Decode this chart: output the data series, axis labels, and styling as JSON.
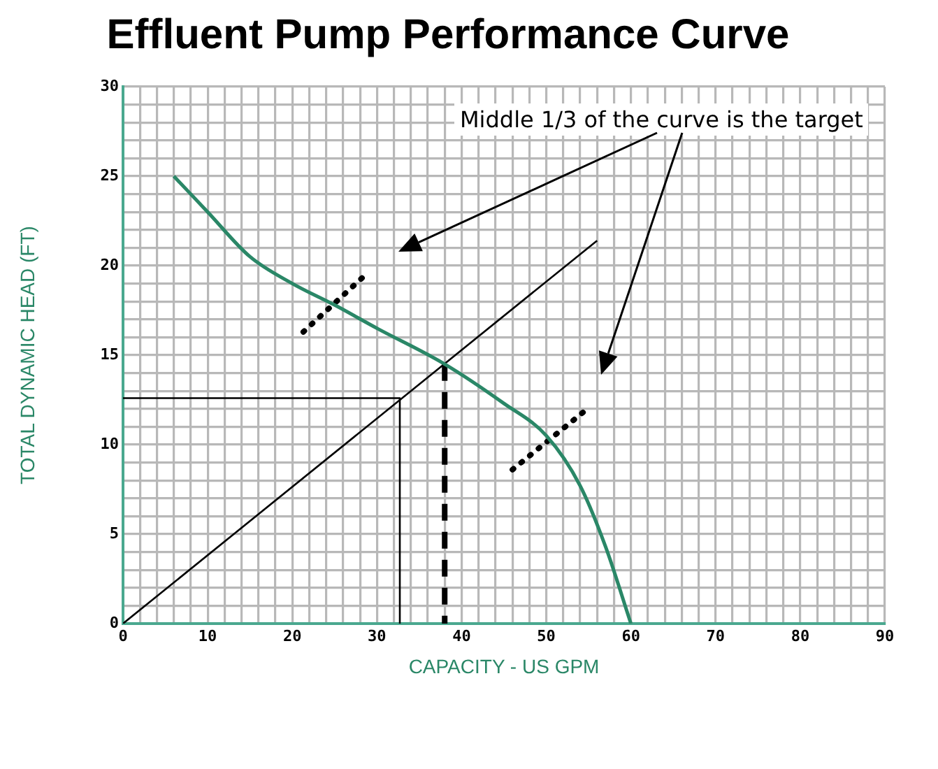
{
  "chart_data": {
    "type": "line",
    "title": "Effluent Pump Performance Curve",
    "xlabel": "CAPACITY - US GPM",
    "ylabel": "TOTAL DYNAMIC HEAD (FT)",
    "xlim": [
      0,
      90
    ],
    "ylim": [
      0,
      30
    ],
    "xticks": [
      0,
      {
        "value": 2,
        "label": null
      },
      {
        "value": 4,
        "label": null
      },
      {
        "value": 6,
        "label": null
      },
      {
        "value": 8,
        "label": null
      },
      10,
      {
        "value": 12,
        "label": null
      },
      {
        "value": 14,
        "label": null
      },
      {
        "value": 16,
        "label": null
      },
      {
        "value": 18,
        "label": null
      },
      20,
      {
        "value": 22,
        "label": null
      },
      {
        "value": 24,
        "label": null
      },
      {
        "value": 26,
        "label": null
      },
      {
        "value": 28,
        "label": null
      },
      30,
      {
        "value": 32,
        "label": null
      },
      {
        "value": 34,
        "label": null
      },
      {
        "value": 36,
        "label": null
      },
      {
        "value": 38,
        "label": null
      },
      40,
      {
        "value": 42,
        "label": null
      },
      {
        "value": 44,
        "label": null
      },
      {
        "value": 46,
        "label": null
      },
      {
        "value": 48,
        "label": null
      },
      50,
      {
        "value": 52,
        "label": null
      },
      {
        "value": 54,
        "label": null
      },
      {
        "value": 56,
        "label": null
      },
      {
        "value": 58,
        "label": null
      },
      60,
      {
        "value": 62,
        "label": null
      },
      {
        "value": 64,
        "label": null
      },
      {
        "value": 66,
        "label": null
      },
      {
        "value": 68,
        "label": null
      },
      70,
      {
        "value": 72,
        "label": null
      },
      {
        "value": 74,
        "label": null
      },
      {
        "value": 76,
        "label": null
      },
      {
        "value": 78,
        "label": null
      },
      80,
      {
        "value": 82,
        "label": null
      },
      {
        "value": 84,
        "label": null
      },
      {
        "value": 86,
        "label": null
      },
      {
        "value": 88,
        "label": null
      },
      90
    ],
    "yticks": [
      0,
      {
        "value": 1,
        "label": null
      },
      {
        "value": 2,
        "label": null
      },
      {
        "value": 3,
        "label": null
      },
      {
        "value": 4,
        "label": null
      },
      5,
      {
        "value": 6,
        "label": null
      },
      {
        "value": 7,
        "label": null
      },
      {
        "value": 8,
        "label": null
      },
      {
        "value": 9,
        "label": null
      },
      10,
      {
        "value": 11,
        "label": null
      },
      {
        "value": 12,
        "label": null
      },
      {
        "value": 13,
        "label": null
      },
      {
        "value": 14,
        "label": null
      },
      15,
      {
        "value": 16,
        "label": null
      },
      {
        "value": 17,
        "label": null
      },
      {
        "value": 18,
        "label": null
      },
      {
        "value": 19,
        "label": null
      },
      20,
      {
        "value": 21,
        "label": null
      },
      {
        "value": 22,
        "label": null
      },
      {
        "value": 23,
        "label": null
      },
      {
        "value": 24,
        "label": null
      },
      25,
      {
        "value": 26,
        "label": null
      },
      {
        "value": 27,
        "label": null
      },
      {
        "value": 28,
        "label": null
      },
      {
        "value": 29,
        "label": null
      },
      30
    ],
    "grid": true,
    "legend": false,
    "marker": "none",
    "series": [
      {
        "color": "#2a8767",
        "x": [
          6,
          10,
          15,
          20,
          25,
          30,
          38,
          45,
          50,
          54,
          57,
          60
        ],
        "values": [
          25,
          23,
          20.5,
          19,
          17.8,
          16.5,
          14.5,
          12.3,
          10.5,
          7.7,
          4.3,
          0
        ],
        "line_style": "solid"
      },
      {
        "color": "#000000",
        "x": [
          0,
          56
        ],
        "values": [
          0,
          21.4
        ],
        "line_style": "solid"
      },
      {
        "color": "#000000",
        "x": [
          0,
          32.7,
          32.7
        ],
        "values": [
          12.6,
          12.6,
          0
        ],
        "line_style": "solid"
      },
      {
        "color": "#000000",
        "x": [
          38,
          38
        ],
        "values": [
          14.5,
          0
        ],
        "line_style": "dashed"
      },
      {
        "color": "#000000",
        "x": [
          21.3,
          28.9
        ],
        "values": [
          16.3,
          19.6
        ],
        "line_style": "dotted"
      },
      {
        "color": "#000000",
        "x": [
          46,
          54.6
        ],
        "values": [
          8.6,
          11.9
        ],
        "line_style": "dotted"
      }
    ],
    "annotations": [
      "Middle 1/3 of the curve is the target"
    ]
  }
}
